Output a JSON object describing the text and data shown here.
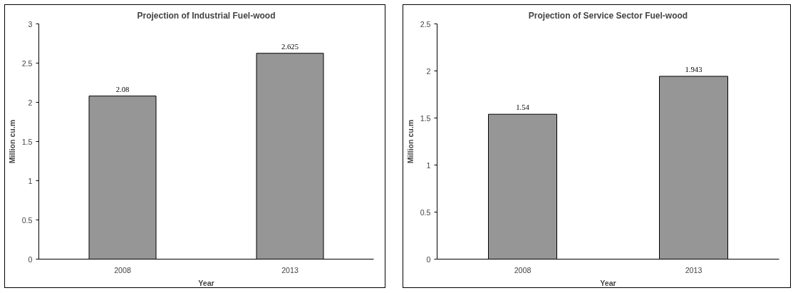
{
  "chart_data": [
    {
      "type": "bar",
      "title": "Projection of Industrial Fuel-wood",
      "xlabel": "Year",
      "ylabel": "Million cu.m",
      "categories": [
        "2008",
        "2013"
      ],
      "values": [
        2.08,
        2.625
      ],
      "color": "#969696",
      "ylim": [
        0,
        3
      ],
      "yticks": [
        0,
        0.5,
        1,
        1.5,
        2,
        2.5,
        3
      ],
      "data_labels": true
    },
    {
      "type": "bar",
      "title": "Projection of Service Sector Fuel-wood",
      "xlabel": "Year",
      "ylabel": "Million cu.m",
      "categories": [
        "2008",
        "2013"
      ],
      "values": [
        1.54,
        1.943
      ],
      "color": "#969696",
      "ylim": [
        0,
        2.5
      ],
      "yticks": [
        0,
        0.5,
        1,
        1.5,
        2,
        2.5
      ],
      "data_labels": true
    }
  ]
}
